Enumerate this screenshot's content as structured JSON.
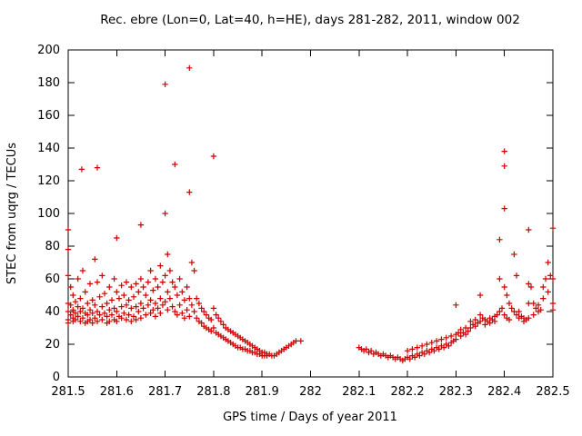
{
  "chart_data": {
    "type": "scatter",
    "title": "Rec. ebre (Lon=0, Lat=40, h=HE), days 281-282, 2011, window 002",
    "xlabel": "GPS time / Days of year 2011",
    "ylabel": "STEC from uqrg / TECUs",
    "xlim": [
      281.5,
      282.5
    ],
    "ylim": [
      0,
      200
    ],
    "x_tick_labels": [
      "281.5",
      "281.6",
      "281.7",
      "281.8",
      "281.9",
      "282",
      "282.1",
      "282.2",
      "282.3",
      "282.4",
      "282.5"
    ],
    "y_tick_labels": [
      "0",
      "20",
      "40",
      "60",
      "80",
      "100",
      "120",
      "140",
      "160",
      "180",
      "200"
    ],
    "grid": false,
    "legend": "none",
    "marker": "plus",
    "marker_color": "#cc0000",
    "axis_color": "#000000",
    "points": [
      [
        281.5,
        90
      ],
      [
        281.5,
        78
      ],
      [
        281.5,
        62
      ],
      [
        281.5,
        45
      ],
      [
        281.5,
        40
      ],
      [
        281.5,
        35
      ],
      [
        281.5,
        33
      ],
      [
        281.505,
        55
      ],
      [
        281.505,
        44
      ],
      [
        281.505,
        38
      ],
      [
        281.51,
        50
      ],
      [
        281.51,
        41
      ],
      [
        281.51,
        36
      ],
      [
        281.51,
        34
      ],
      [
        281.515,
        46
      ],
      [
        281.515,
        39
      ],
      [
        281.515,
        35
      ],
      [
        281.52,
        60
      ],
      [
        281.52,
        43
      ],
      [
        281.52,
        37
      ],
      [
        281.525,
        48
      ],
      [
        281.525,
        40
      ],
      [
        281.525,
        34
      ],
      [
        281.528,
        127
      ],
      [
        281.53,
        65
      ],
      [
        281.53,
        42
      ],
      [
        281.53,
        36
      ],
      [
        281.535,
        52
      ],
      [
        281.535,
        39
      ],
      [
        281.535,
        33
      ],
      [
        281.54,
        45
      ],
      [
        281.54,
        38
      ],
      [
        281.54,
        34
      ],
      [
        281.545,
        57
      ],
      [
        281.545,
        41
      ],
      [
        281.545,
        35
      ],
      [
        281.55,
        47
      ],
      [
        281.55,
        39
      ],
      [
        281.55,
        33
      ],
      [
        281.555,
        72
      ],
      [
        281.555,
        44
      ],
      [
        281.555,
        36
      ],
      [
        281.56,
        128
      ],
      [
        281.56,
        58
      ],
      [
        281.56,
        40
      ],
      [
        281.56,
        34
      ],
      [
        281.565,
        49
      ],
      [
        281.565,
        38
      ],
      [
        281.57,
        62
      ],
      [
        281.57,
        43
      ],
      [
        281.57,
        35
      ],
      [
        281.575,
        51
      ],
      [
        281.575,
        39
      ],
      [
        281.58,
        45
      ],
      [
        281.58,
        37
      ],
      [
        281.58,
        33
      ],
      [
        281.585,
        55
      ],
      [
        281.585,
        41
      ],
      [
        281.585,
        34
      ],
      [
        281.59,
        47
      ],
      [
        281.59,
        38
      ],
      [
        281.595,
        60
      ],
      [
        281.595,
        42
      ],
      [
        281.595,
        35
      ],
      [
        281.6,
        85
      ],
      [
        281.6,
        52
      ],
      [
        281.6,
        40
      ],
      [
        281.6,
        34
      ],
      [
        281.605,
        48
      ],
      [
        281.605,
        37
      ],
      [
        281.61,
        56
      ],
      [
        281.61,
        43
      ],
      [
        281.61,
        36
      ],
      [
        281.615,
        50
      ],
      [
        281.615,
        39
      ],
      [
        281.62,
        58
      ],
      [
        281.62,
        44
      ],
      [
        281.62,
        35
      ],
      [
        281.625,
        47
      ],
      [
        281.625,
        38
      ],
      [
        281.63,
        55
      ],
      [
        281.63,
        42
      ],
      [
        281.63,
        34
      ],
      [
        281.635,
        49
      ],
      [
        281.635,
        37
      ],
      [
        281.64,
        57
      ],
      [
        281.64,
        43
      ],
      [
        281.64,
        35
      ],
      [
        281.645,
        52
      ],
      [
        281.645,
        40
      ],
      [
        281.65,
        93
      ],
      [
        281.65,
        60
      ],
      [
        281.65,
        45
      ],
      [
        281.65,
        36
      ],
      [
        281.655,
        55
      ],
      [
        281.655,
        42
      ],
      [
        281.66,
        50
      ],
      [
        281.66,
        38
      ],
      [
        281.665,
        58
      ],
      [
        281.665,
        44
      ],
      [
        281.67,
        65
      ],
      [
        281.67,
        47
      ],
      [
        281.67,
        39
      ],
      [
        281.675,
        53
      ],
      [
        281.675,
        41
      ],
      [
        281.68,
        60
      ],
      [
        281.68,
        45
      ],
      [
        281.68,
        37
      ],
      [
        281.685,
        55
      ],
      [
        281.685,
        42
      ],
      [
        281.69,
        68
      ],
      [
        281.69,
        48
      ],
      [
        281.69,
        39
      ],
      [
        281.695,
        58
      ],
      [
        281.695,
        44
      ],
      [
        281.7,
        179
      ],
      [
        281.7,
        100
      ],
      [
        281.7,
        62
      ],
      [
        281.7,
        46
      ],
      [
        281.705,
        75
      ],
      [
        281.705,
        52
      ],
      [
        281.705,
        41
      ],
      [
        281.71,
        65
      ],
      [
        281.71,
        48
      ],
      [
        281.715,
        58
      ],
      [
        281.715,
        43
      ],
      [
        281.72,
        130
      ],
      [
        281.72,
        55
      ],
      [
        281.72,
        40
      ],
      [
        281.725,
        50
      ],
      [
        281.725,
        38
      ],
      [
        281.73,
        60
      ],
      [
        281.73,
        44
      ],
      [
        281.735,
        52
      ],
      [
        281.735,
        39
      ],
      [
        281.74,
        47
      ],
      [
        281.74,
        36
      ],
      [
        281.745,
        55
      ],
      [
        281.745,
        41
      ],
      [
        281.75,
        189
      ],
      [
        281.75,
        113
      ],
      [
        281.75,
        48
      ],
      [
        281.75,
        37
      ],
      [
        281.755,
        70
      ],
      [
        281.755,
        44
      ],
      [
        281.76,
        65
      ],
      [
        281.76,
        40
      ],
      [
        281.765,
        48
      ],
      [
        281.765,
        36
      ],
      [
        281.77,
        45
      ],
      [
        281.77,
        34
      ],
      [
        281.775,
        42
      ],
      [
        281.775,
        33
      ],
      [
        281.78,
        40
      ],
      [
        281.78,
        31
      ],
      [
        281.785,
        38
      ],
      [
        281.785,
        30
      ],
      [
        281.79,
        36
      ],
      [
        281.79,
        29
      ],
      [
        281.795,
        35
      ],
      [
        281.795,
        28
      ],
      [
        281.8,
        135
      ],
      [
        281.8,
        42
      ],
      [
        281.8,
        30
      ],
      [
        281.805,
        38
      ],
      [
        281.805,
        27
      ],
      [
        281.81,
        36
      ],
      [
        281.81,
        26
      ],
      [
        281.815,
        34
      ],
      [
        281.815,
        25
      ],
      [
        281.82,
        32
      ],
      [
        281.82,
        24
      ],
      [
        281.825,
        30
      ],
      [
        281.825,
        23
      ],
      [
        281.83,
        29
      ],
      [
        281.83,
        22
      ],
      [
        281.835,
        28
      ],
      [
        281.835,
        21
      ],
      [
        281.84,
        27
      ],
      [
        281.84,
        20
      ],
      [
        281.845,
        26
      ],
      [
        281.845,
        19
      ],
      [
        281.85,
        25
      ],
      [
        281.85,
        18
      ],
      [
        281.855,
        24
      ],
      [
        281.855,
        18
      ],
      [
        281.86,
        23
      ],
      [
        281.86,
        17
      ],
      [
        281.865,
        22
      ],
      [
        281.865,
        17
      ],
      [
        281.87,
        21
      ],
      [
        281.87,
        16
      ],
      [
        281.875,
        20
      ],
      [
        281.875,
        16
      ],
      [
        281.88,
        19
      ],
      [
        281.88,
        15
      ],
      [
        281.885,
        18
      ],
      [
        281.885,
        15
      ],
      [
        281.89,
        17
      ],
      [
        281.89,
        14
      ],
      [
        281.895,
        16
      ],
      [
        281.895,
        14
      ],
      [
        281.9,
        15
      ],
      [
        281.9,
        13
      ],
      [
        281.905,
        15
      ],
      [
        281.905,
        13
      ],
      [
        281.91,
        14
      ],
      [
        281.91,
        13
      ],
      [
        281.915,
        14
      ],
      [
        281.92,
        13
      ],
      [
        281.925,
        13
      ],
      [
        281.93,
        14
      ],
      [
        281.935,
        15
      ],
      [
        281.94,
        16
      ],
      [
        281.945,
        17
      ],
      [
        281.95,
        18
      ],
      [
        281.955,
        19
      ],
      [
        281.96,
        20
      ],
      [
        281.965,
        21
      ],
      [
        281.97,
        22
      ],
      [
        281.98,
        22
      ],
      [
        282.1,
        18
      ],
      [
        282.105,
        17
      ],
      [
        282.11,
        16
      ],
      [
        282.115,
        17
      ],
      [
        282.12,
        15
      ],
      [
        282.125,
        16
      ],
      [
        282.13,
        14
      ],
      [
        282.135,
        15
      ],
      [
        282.14,
        14
      ],
      [
        282.145,
        13
      ],
      [
        282.15,
        14
      ],
      [
        282.155,
        13
      ],
      [
        282.16,
        12
      ],
      [
        282.165,
        13
      ],
      [
        282.17,
        12
      ],
      [
        282.175,
        11
      ],
      [
        282.18,
        12
      ],
      [
        282.185,
        11
      ],
      [
        282.19,
        10
      ],
      [
        282.195,
        11
      ],
      [
        282.2,
        12
      ],
      [
        282.2,
        16
      ],
      [
        282.205,
        11
      ],
      [
        282.21,
        13
      ],
      [
        282.21,
        17
      ],
      [
        282.215,
        12
      ],
      [
        282.22,
        14
      ],
      [
        282.22,
        18
      ],
      [
        282.225,
        13
      ],
      [
        282.23,
        15
      ],
      [
        282.23,
        19
      ],
      [
        282.235,
        14
      ],
      [
        282.24,
        16
      ],
      [
        282.24,
        20
      ],
      [
        282.245,
        15
      ],
      [
        282.25,
        17
      ],
      [
        282.25,
        21
      ],
      [
        282.255,
        16
      ],
      [
        282.26,
        18
      ],
      [
        282.26,
        22
      ],
      [
        282.265,
        17
      ],
      [
        282.27,
        19
      ],
      [
        282.27,
        23
      ],
      [
        282.275,
        18
      ],
      [
        282.28,
        20
      ],
      [
        282.28,
        24
      ],
      [
        282.285,
        19
      ],
      [
        282.29,
        21
      ],
      [
        282.29,
        25
      ],
      [
        282.295,
        22
      ],
      [
        282.3,
        44
      ],
      [
        282.3,
        26
      ],
      [
        282.3,
        23
      ],
      [
        282.305,
        27
      ],
      [
        282.31,
        25
      ],
      [
        282.31,
        29
      ],
      [
        282.315,
        27
      ],
      [
        282.32,
        30
      ],
      [
        282.32,
        26
      ],
      [
        282.325,
        28
      ],
      [
        282.33,
        34
      ],
      [
        282.33,
        30
      ],
      [
        282.335,
        32
      ],
      [
        282.34,
        35
      ],
      [
        282.34,
        31
      ],
      [
        282.345,
        33
      ],
      [
        282.35,
        50
      ],
      [
        282.35,
        38
      ],
      [
        282.35,
        34
      ],
      [
        282.355,
        36
      ],
      [
        282.36,
        35
      ],
      [
        282.36,
        32
      ],
      [
        282.365,
        34
      ],
      [
        282.37,
        33
      ],
      [
        282.37,
        36
      ],
      [
        282.375,
        35
      ],
      [
        282.38,
        37
      ],
      [
        282.38,
        34
      ],
      [
        282.385,
        38
      ],
      [
        282.39,
        84
      ],
      [
        282.39,
        60
      ],
      [
        282.39,
        40
      ],
      [
        282.395,
        42
      ],
      [
        282.4,
        138
      ],
      [
        282.4,
        129
      ],
      [
        282.4,
        103
      ],
      [
        282.4,
        55
      ],
      [
        282.4,
        38
      ],
      [
        282.405,
        50
      ],
      [
        282.405,
        36
      ],
      [
        282.41,
        45
      ],
      [
        282.41,
        35
      ],
      [
        282.415,
        42
      ],
      [
        282.42,
        75
      ],
      [
        282.42,
        40
      ],
      [
        282.425,
        62
      ],
      [
        282.425,
        38
      ],
      [
        282.43,
        40
      ],
      [
        282.43,
        36
      ],
      [
        282.435,
        37
      ],
      [
        282.44,
        36
      ],
      [
        282.44,
        34
      ],
      [
        282.445,
        35
      ],
      [
        282.45,
        90
      ],
      [
        282.45,
        57
      ],
      [
        282.45,
        45
      ],
      [
        282.45,
        36
      ],
      [
        282.455,
        55
      ],
      [
        282.46,
        45
      ],
      [
        282.46,
        38
      ],
      [
        282.465,
        42
      ],
      [
        282.47,
        40
      ],
      [
        282.47,
        44
      ],
      [
        282.475,
        41
      ],
      [
        282.48,
        55
      ],
      [
        282.48,
        48
      ],
      [
        282.485,
        60
      ],
      [
        282.49,
        70
      ],
      [
        282.49,
        52
      ],
      [
        282.495,
        62
      ],
      [
        282.5,
        91
      ],
      [
        282.5,
        60
      ],
      [
        282.5,
        45
      ],
      [
        282.5,
        41
      ]
    ]
  }
}
